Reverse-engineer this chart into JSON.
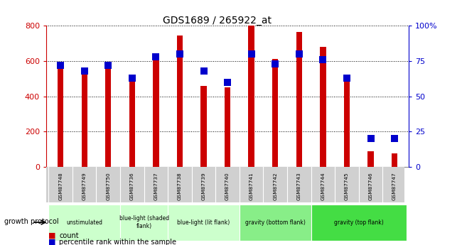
{
  "title": "GDS1689 / 265922_at",
  "samples": [
    "GSM87748",
    "GSM87749",
    "GSM87750",
    "GSM87736",
    "GSM87737",
    "GSM87738",
    "GSM87739",
    "GSM87740",
    "GSM87741",
    "GSM87742",
    "GSM87743",
    "GSM87744",
    "GSM87745",
    "GSM87746",
    "GSM87747"
  ],
  "count_values": [
    570,
    545,
    560,
    500,
    620,
    745,
    460,
    450,
    800,
    610,
    765,
    680,
    495,
    90,
    75
  ],
  "percentile_values": [
    72,
    68,
    72,
    63,
    78,
    80,
    68,
    60,
    80,
    73,
    80,
    76,
    63,
    20,
    20
  ],
  "groups": [
    {
      "label": "unstimulated",
      "start": 0,
      "end": 3,
      "color": "#ccffcc"
    },
    {
      "label": "blue-light (shaded\nflank)",
      "start": 3,
      "end": 5,
      "color": "#ccffcc"
    },
    {
      "label": "blue-light (lit flank)",
      "start": 5,
      "end": 8,
      "color": "#ccffcc"
    },
    {
      "label": "gravity (bottom flank)",
      "start": 8,
      "end": 11,
      "color": "#88ee88"
    },
    {
      "label": "gravity (top flank)",
      "start": 11,
      "end": 15,
      "color": "#44dd44"
    }
  ],
  "bar_color_red": "#cc0000",
  "bar_color_blue": "#0000cc",
  "ylim_left": [
    0,
    800
  ],
  "ylim_right": [
    0,
    100
  ],
  "yticks_left": [
    0,
    200,
    400,
    600,
    800
  ],
  "yticks_right": [
    0,
    25,
    50,
    75,
    100
  ],
  "tick_color_left": "#cc0000",
  "tick_color_right": "#0000cc",
  "bg_white": "#ffffff",
  "bg_sample_row": "#d0d0d0"
}
